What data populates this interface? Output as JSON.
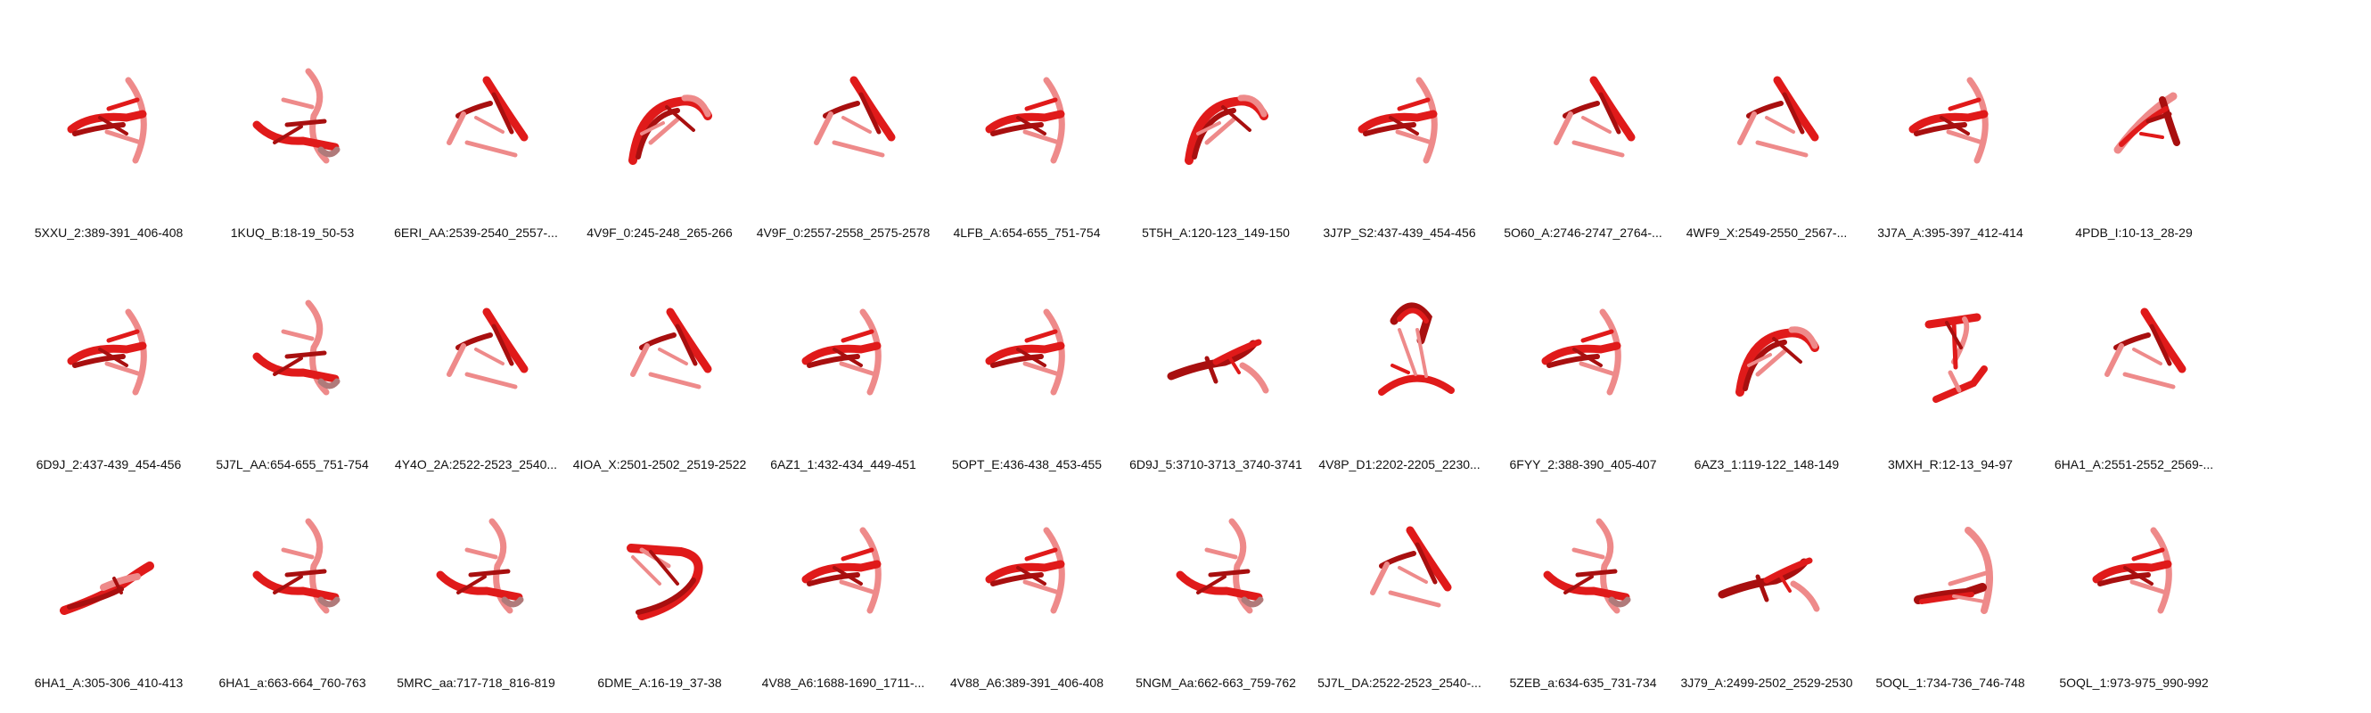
{
  "rows": [
    [
      "5XXU_2:389-391_406-408",
      "1KUQ_B:18-19_50-53",
      "6ERI_AA:2539-2540_2557-...",
      "4V9F_0:245-248_265-266",
      "4V9F_0:2557-2558_2575-2578",
      "4LFB_A:654-655_751-754",
      "5T5H_A:120-123_149-150",
      "3J7P_S2:437-439_454-456",
      "5O60_A:2746-2747_2764-...",
      "4WF9_X:2549-2550_2567-...",
      "3J7A_A:395-397_412-414",
      "4PDB_I:10-13_28-29"
    ],
    [
      "6D9J_2:437-439_454-456",
      "5J7L_AA:654-655_751-754",
      "4Y4O_2A:2522-2523_2540...",
      "4IOA_X:2501-2502_2519-2522",
      "6AZ1_1:432-434_449-451",
      "5OPT_E:436-438_453-455",
      "6D9J_5:3710-3713_3740-3741",
      "4V8P_D1:2202-2205_2230...",
      "6FYY_2:388-390_405-407",
      "6AZ3_1:119-122_148-149",
      "3MXH_R:12-13_94-97",
      "6HA1_A:2551-2552_2569-..."
    ],
    [
      "6HA1_A:305-306_410-413",
      "6HA1_a:663-664_760-763",
      "5MRC_aa:717-718_816-819",
      "6DME_A:16-19_37-38",
      "4V88_A6:1688-1690_1711-...",
      "4V88_A6:389-391_406-408",
      "5NGM_Aa:662-663_759-762",
      "5J7L_DA:2522-2523_2540-...",
      "5ZEB_a:634-635_731-734",
      "3J79_A:2499-2502_2529-2530",
      "5OQL_1:734-736_746-748",
      "5OQL_1:973-975_990-992"
    ]
  ],
  "structure_types": [
    [
      "J",
      "K",
      "V",
      "C",
      "V",
      "J",
      "C",
      "J",
      "V",
      "V",
      "J",
      "S"
    ],
    [
      "J",
      "K",
      "V",
      "V",
      "J",
      "J",
      "B",
      "R",
      "J",
      "C",
      "X",
      "V"
    ],
    [
      "H",
      "K",
      "K",
      "U",
      "J",
      "J",
      "K",
      "V",
      "K",
      "B",
      "L",
      "J"
    ]
  ],
  "colors": {
    "dark": "#a80f0f",
    "main": "#e01a1a",
    "light": "#ee8a8a",
    "gray": "#b07a7a"
  }
}
